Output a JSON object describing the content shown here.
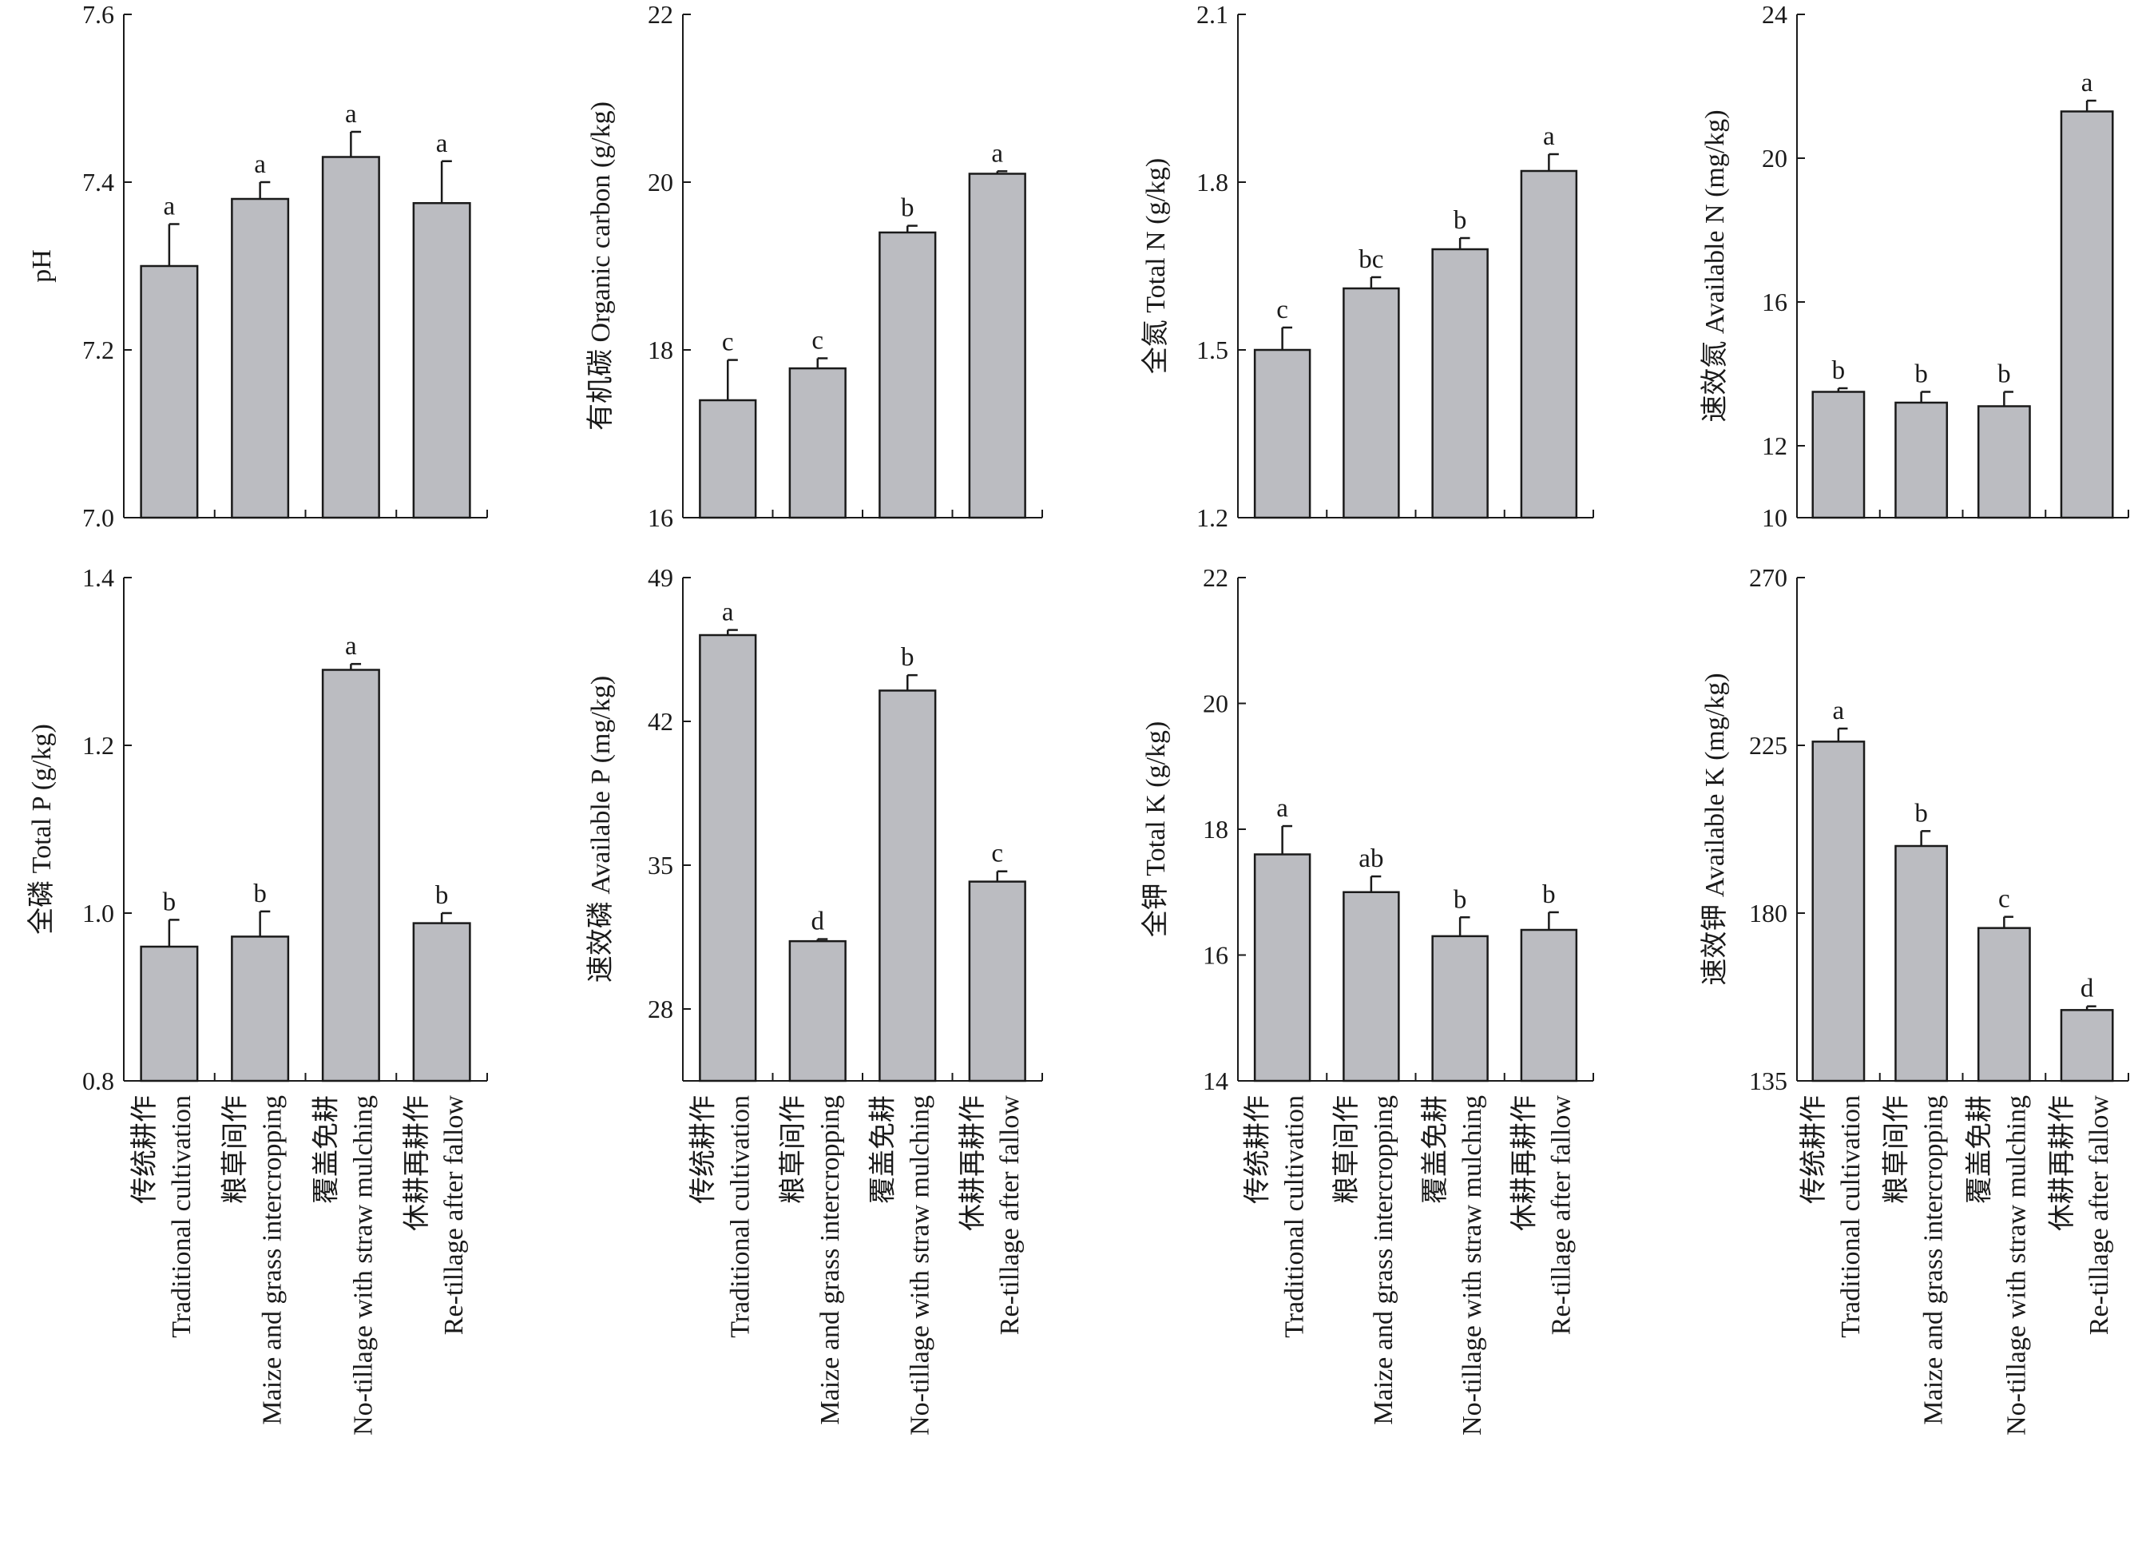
{
  "figure": {
    "bar_color": "#bbbcc1",
    "edge_color": "#1a1a1a"
  },
  "chart_data": [
    {
      "type": "bar",
      "ylabel": "pH",
      "ylim": [
        7.0,
        7.6
      ],
      "yticks": [
        7.0,
        7.2,
        7.4,
        7.6
      ],
      "ytick_labels": [
        "7.0",
        "7.2",
        "7.4",
        "7.6"
      ],
      "values": [
        7.3,
        7.38,
        7.43,
        7.375
      ],
      "errors": [
        0.05,
        0.02,
        0.03,
        0.05
      ],
      "letters": [
        "a",
        "a",
        "a",
        "a"
      ],
      "show_categories": false
    },
    {
      "type": "bar",
      "ylabel": "有机碳 Organic carbon (g/kg)",
      "ylim": [
        16,
        22
      ],
      "yticks": [
        16,
        18,
        20,
        22
      ],
      "ytick_labels": [
        "16",
        "18",
        "20",
        "22"
      ],
      "values": [
        17.4,
        17.78,
        19.4,
        20.1
      ],
      "errors": [
        0.48,
        0.12,
        0.08,
        0.03
      ],
      "letters": [
        "c",
        "c",
        "b",
        "a"
      ],
      "show_categories": false
    },
    {
      "type": "bar",
      "ylabel": "全氮 Total N (g/kg)",
      "ylim": [
        1.2,
        2.1
      ],
      "yticks": [
        1.2,
        1.5,
        1.8,
        2.1
      ],
      "ytick_labels": [
        "1.2",
        "1.5",
        "1.8",
        "2.1"
      ],
      "values": [
        1.5,
        1.61,
        1.68,
        1.82
      ],
      "errors": [
        0.04,
        0.02,
        0.02,
        0.03
      ],
      "letters": [
        "c",
        "bc",
        "b",
        "a"
      ],
      "show_categories": false
    },
    {
      "type": "bar",
      "ylabel": "速效氮 Available N (mg/kg)",
      "ylim": [
        10,
        24
      ],
      "yticks": [
        10,
        12,
        16,
        20,
        24
      ],
      "ytick_labels": [
        "10",
        "12",
        "16",
        "20",
        "24"
      ],
      "values": [
        13.5,
        13.2,
        13.1,
        21.3
      ],
      "errors": [
        0.1,
        0.3,
        0.4,
        0.3
      ],
      "letters": [
        "b",
        "b",
        "b",
        "a"
      ],
      "show_categories": false
    },
    {
      "type": "bar",
      "ylabel": "全磷 Total P (g/kg)",
      "ylim": [
        0.8,
        1.4
      ],
      "yticks": [
        0.8,
        1.0,
        1.2,
        1.4
      ],
      "ytick_labels": [
        "0.8",
        "1.0",
        "1.2",
        "1.4"
      ],
      "values": [
        0.96,
        0.972,
        1.29,
        0.988
      ],
      "errors": [
        0.032,
        0.03,
        0.007,
        0.012
      ],
      "letters": [
        "b",
        "b",
        "a",
        "b"
      ],
      "show_categories": true
    },
    {
      "type": "bar",
      "ylabel": "速效磷 Available P (mg/kg)",
      "ylim": [
        24.5,
        49
      ],
      "yticks": [
        28,
        35,
        42,
        49
      ],
      "ytick_labels": [
        "28",
        "35",
        "42",
        "49"
      ],
      "values": [
        46.2,
        31.3,
        43.5,
        34.2
      ],
      "errors": [
        0.25,
        0.1,
        0.75,
        0.5
      ],
      "letters": [
        "a",
        "d",
        "b",
        "c"
      ],
      "show_categories": true
    },
    {
      "type": "bar",
      "ylabel": "全钾 Total K (g/kg)",
      "ylim": [
        14,
        22
      ],
      "yticks": [
        14,
        16,
        18,
        20,
        22
      ],
      "ytick_labels": [
        "14",
        "16",
        "18",
        "20",
        "22"
      ],
      "values": [
        17.6,
        17.0,
        16.3,
        16.4
      ],
      "errors": [
        0.45,
        0.25,
        0.3,
        0.28
      ],
      "letters": [
        "a",
        "ab",
        "b",
        "b"
      ],
      "show_categories": true
    },
    {
      "type": "bar",
      "ylabel": "速效钾 Available K (mg/kg)",
      "ylim": [
        135,
        270
      ],
      "yticks": [
        135,
        180,
        225,
        270
      ],
      "ytick_labels": [
        "135",
        "180",
        "225",
        "270"
      ],
      "values": [
        226,
        198,
        176,
        154
      ],
      "errors": [
        3.5,
        4,
        3,
        1
      ],
      "letters": [
        "a",
        "b",
        "c",
        "d"
      ],
      "show_categories": true
    }
  ],
  "categories": [
    {
      "zh": "传统耕作",
      "en": "Traditional cultivation"
    },
    {
      "zh": "粮草间作",
      "en": "Maize and grass intercropping"
    },
    {
      "zh": "覆盖免耕",
      "en": "No-tillage with straw mulching"
    },
    {
      "zh": "休耕再耕作",
      "en": "Re-tillage after fallow"
    }
  ]
}
